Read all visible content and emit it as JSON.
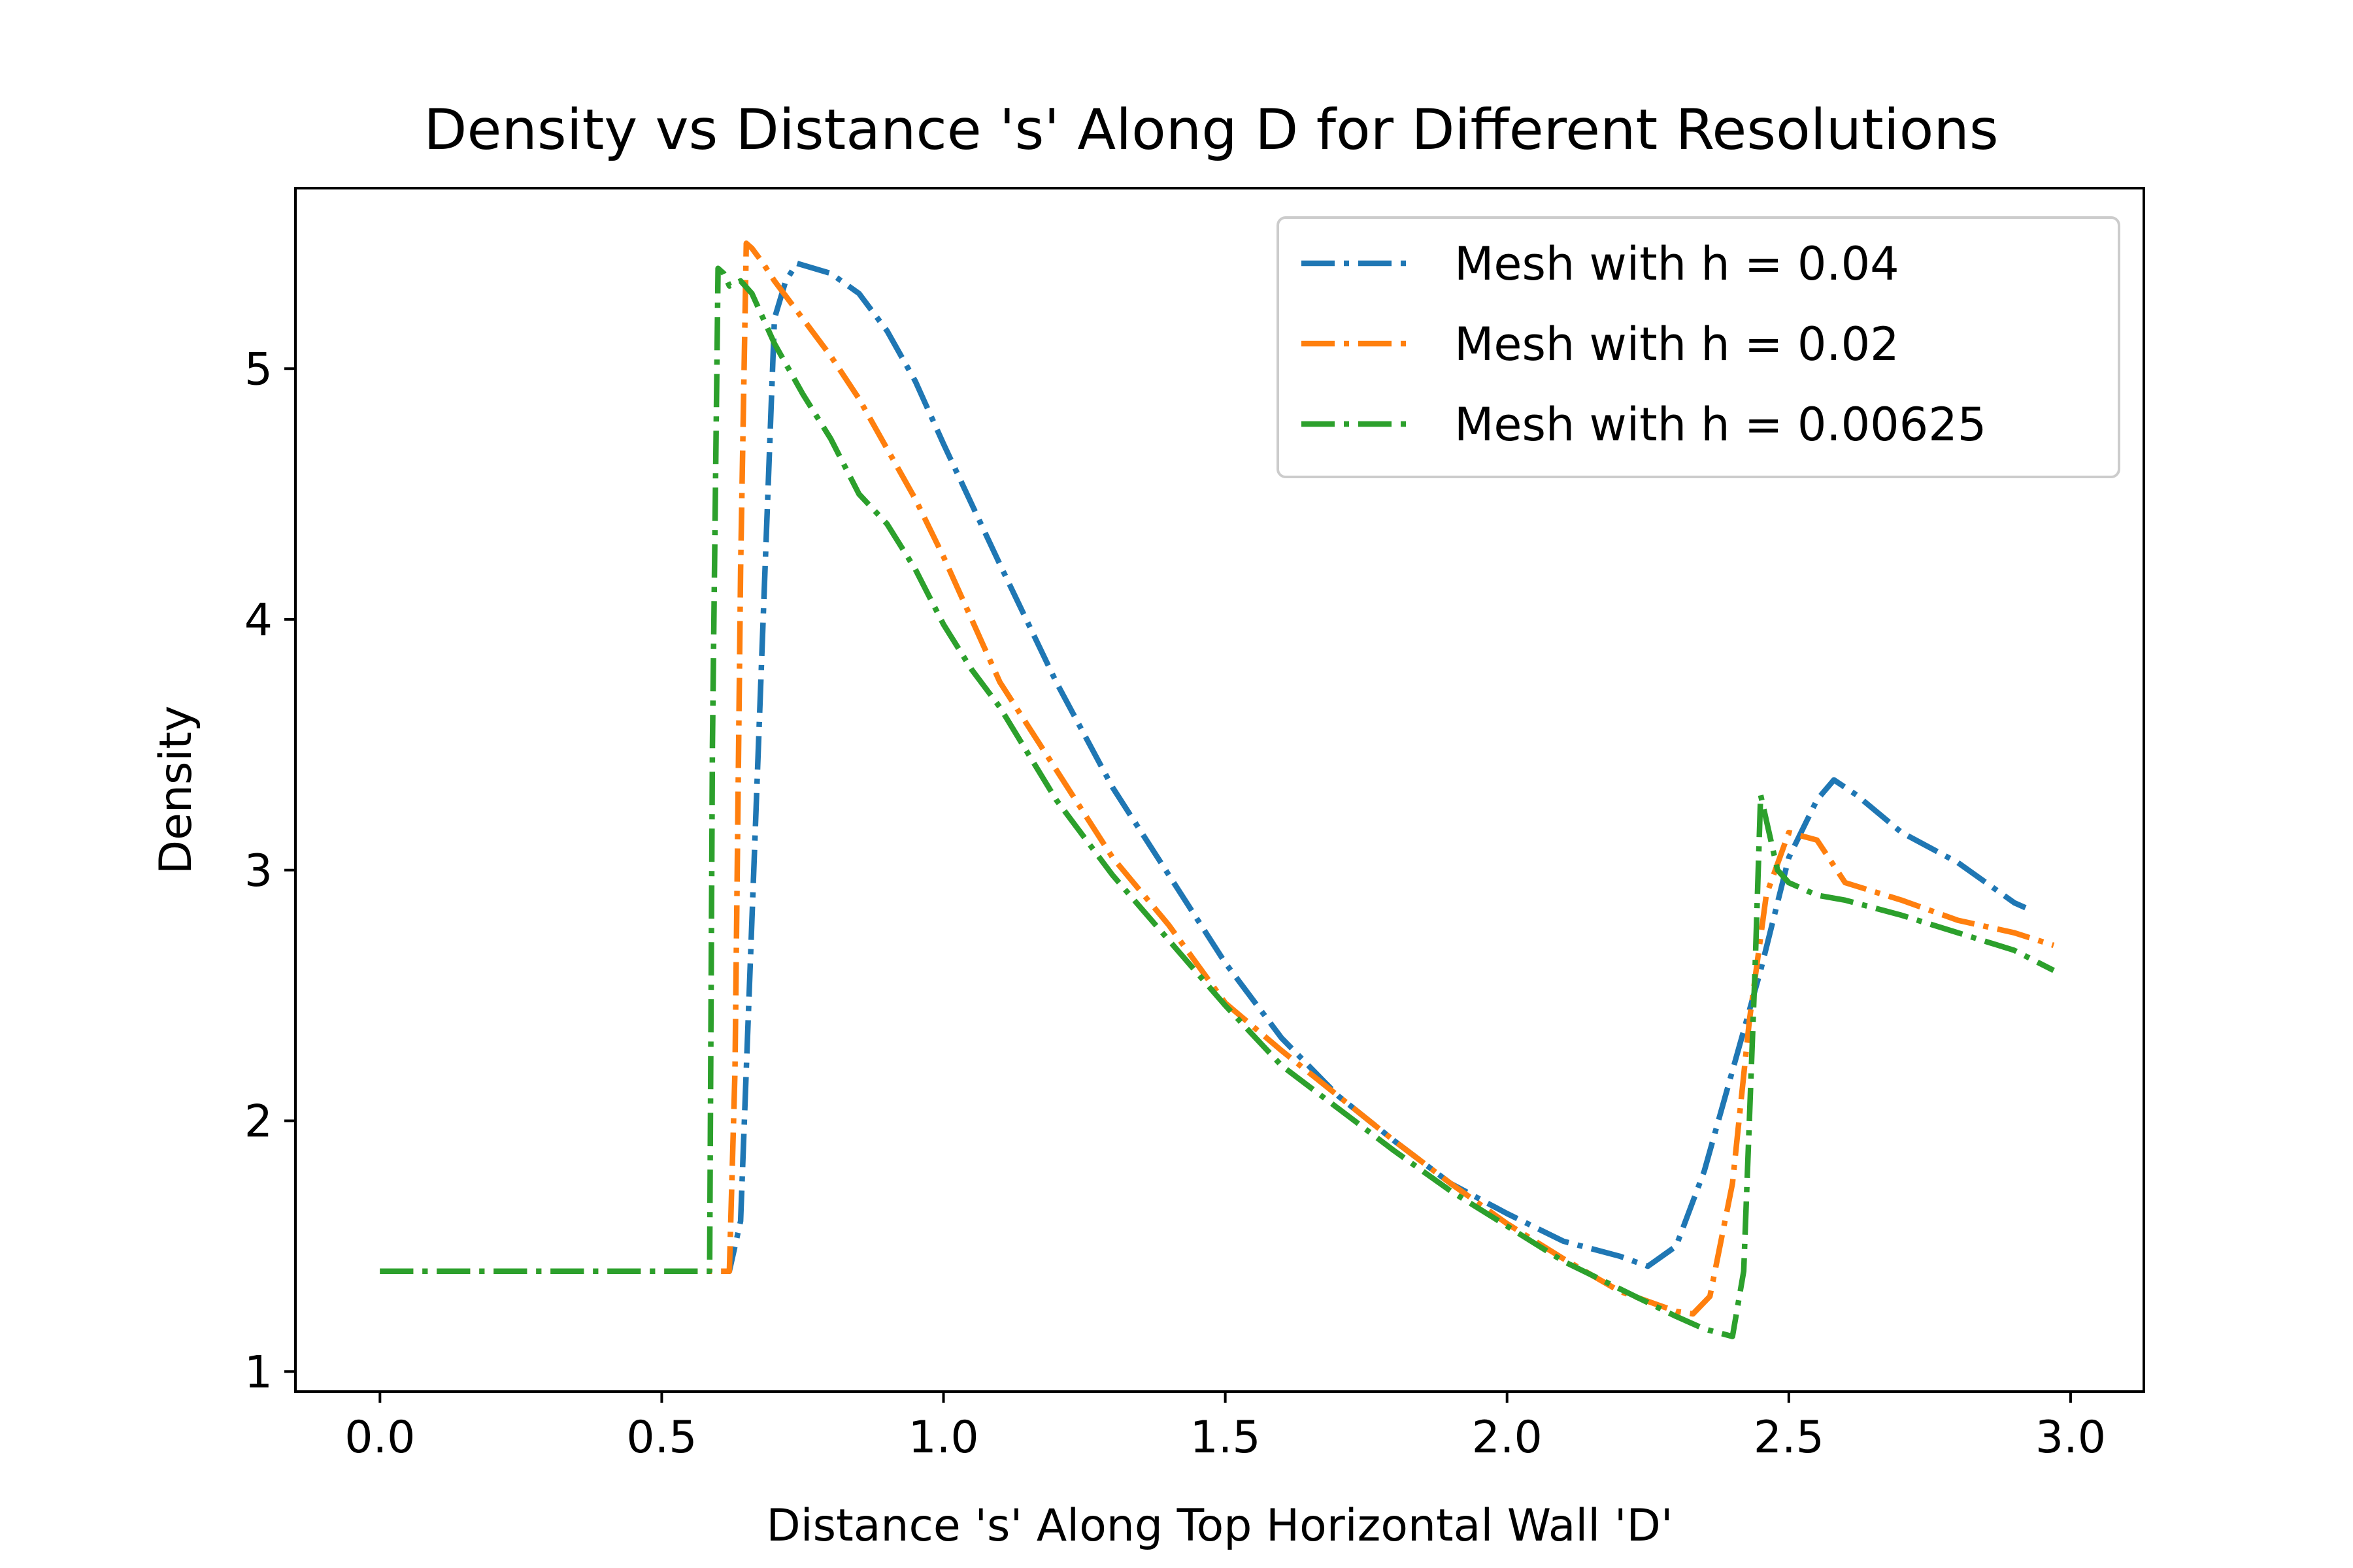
{
  "chart_data": {
    "type": "line",
    "title": "Density vs Distance 's' Along D for Different Resolutions",
    "xlabel": "Distance 's' Along Top Horizontal Wall 'D'",
    "ylabel": "Density",
    "xlim": [
      -0.15,
      3.13
    ],
    "ylim": [
      0.92,
      5.72
    ],
    "xticks": [
      0.0,
      0.5,
      1.0,
      1.5,
      2.0,
      2.5,
      3.0
    ],
    "xtick_labels": [
      "0.0",
      "0.5",
      "1.0",
      "1.5",
      "2.0",
      "2.5",
      "3.0"
    ],
    "yticks": [
      1,
      2,
      3,
      4,
      5
    ],
    "ytick_labels": [
      "1",
      "2",
      "3",
      "4",
      "5"
    ],
    "grid": false,
    "legend_position": "top-right",
    "line_style": "dash-dot",
    "series": [
      {
        "name": "Mesh with h = 0.04",
        "color": "#1f77b4",
        "x": [
          0.0,
          0.1,
          0.2,
          0.3,
          0.4,
          0.5,
          0.6,
          0.62,
          0.64,
          0.66,
          0.68,
          0.7,
          0.72,
          0.74,
          0.8,
          0.85,
          0.9,
          0.95,
          1.0,
          1.1,
          1.2,
          1.3,
          1.4,
          1.5,
          1.6,
          1.7,
          1.8,
          1.9,
          2.0,
          2.1,
          2.2,
          2.25,
          2.3,
          2.35,
          2.4,
          2.45,
          2.5,
          2.55,
          2.58,
          2.62,
          2.7,
          2.8,
          2.85,
          2.9,
          2.92
        ],
        "values": [
          1.4,
          1.4,
          1.4,
          1.4,
          1.4,
          1.4,
          1.4,
          1.4,
          1.6,
          2.8,
          4.0,
          5.2,
          5.35,
          5.42,
          5.38,
          5.3,
          5.15,
          4.95,
          4.7,
          4.22,
          3.75,
          3.33,
          2.98,
          2.63,
          2.33,
          2.1,
          1.92,
          1.75,
          1.63,
          1.52,
          1.46,
          1.42,
          1.5,
          1.8,
          2.2,
          2.6,
          3.05,
          3.28,
          3.36,
          3.3,
          3.15,
          3.03,
          2.95,
          2.87,
          2.85
        ]
      },
      {
        "name": "Mesh with h = 0.02",
        "color": "#ff7f0e",
        "x": [
          0.0,
          0.1,
          0.2,
          0.3,
          0.4,
          0.5,
          0.6,
          0.62,
          0.63,
          0.64,
          0.65,
          0.66,
          0.68,
          0.7,
          0.75,
          0.8,
          0.85,
          0.9,
          0.95,
          1.0,
          1.05,
          1.1,
          1.2,
          1.3,
          1.4,
          1.5,
          1.6,
          1.7,
          1.8,
          1.9,
          2.0,
          2.1,
          2.2,
          2.3,
          2.33,
          2.36,
          2.4,
          2.43,
          2.46,
          2.5,
          2.55,
          2.6,
          2.7,
          2.8,
          2.9,
          2.97
        ],
        "values": [
          1.4,
          1.4,
          1.4,
          1.4,
          1.4,
          1.4,
          1.4,
          1.4,
          2.2,
          4.2,
          5.5,
          5.48,
          5.42,
          5.35,
          5.2,
          5.05,
          4.88,
          4.68,
          4.48,
          4.25,
          4.0,
          3.75,
          3.4,
          3.05,
          2.78,
          2.47,
          2.28,
          2.1,
          1.92,
          1.75,
          1.59,
          1.45,
          1.32,
          1.24,
          1.23,
          1.3,
          1.75,
          2.4,
          2.9,
          3.15,
          3.12,
          2.95,
          2.88,
          2.8,
          2.75,
          2.7
        ]
      },
      {
        "name": "Mesh with h = 0.00625",
        "color": "#2ca02c",
        "x": [
          0.0,
          0.1,
          0.2,
          0.3,
          0.4,
          0.5,
          0.57,
          0.585,
          0.59,
          0.6,
          0.61,
          0.62,
          0.64,
          0.66,
          0.7,
          0.75,
          0.8,
          0.85,
          0.9,
          0.95,
          1.0,
          1.05,
          1.1,
          1.2,
          1.3,
          1.4,
          1.5,
          1.6,
          1.7,
          1.8,
          1.9,
          2.0,
          2.1,
          2.2,
          2.3,
          2.35,
          2.4,
          2.42,
          2.44,
          2.45,
          2.46,
          2.48,
          2.5,
          2.55,
          2.6,
          2.7,
          2.8,
          2.9,
          2.97
        ],
        "values": [
          1.4,
          1.4,
          1.4,
          1.4,
          1.4,
          1.4,
          1.4,
          1.4,
          3.5,
          5.4,
          5.38,
          5.33,
          5.35,
          5.3,
          5.1,
          4.9,
          4.72,
          4.5,
          4.38,
          4.2,
          3.98,
          3.8,
          3.65,
          3.28,
          2.98,
          2.72,
          2.46,
          2.22,
          2.05,
          1.88,
          1.72,
          1.58,
          1.44,
          1.33,
          1.22,
          1.17,
          1.14,
          1.4,
          2.6,
          3.3,
          3.2,
          3.0,
          2.95,
          2.9,
          2.88,
          2.82,
          2.75,
          2.68,
          2.6
        ]
      }
    ]
  }
}
